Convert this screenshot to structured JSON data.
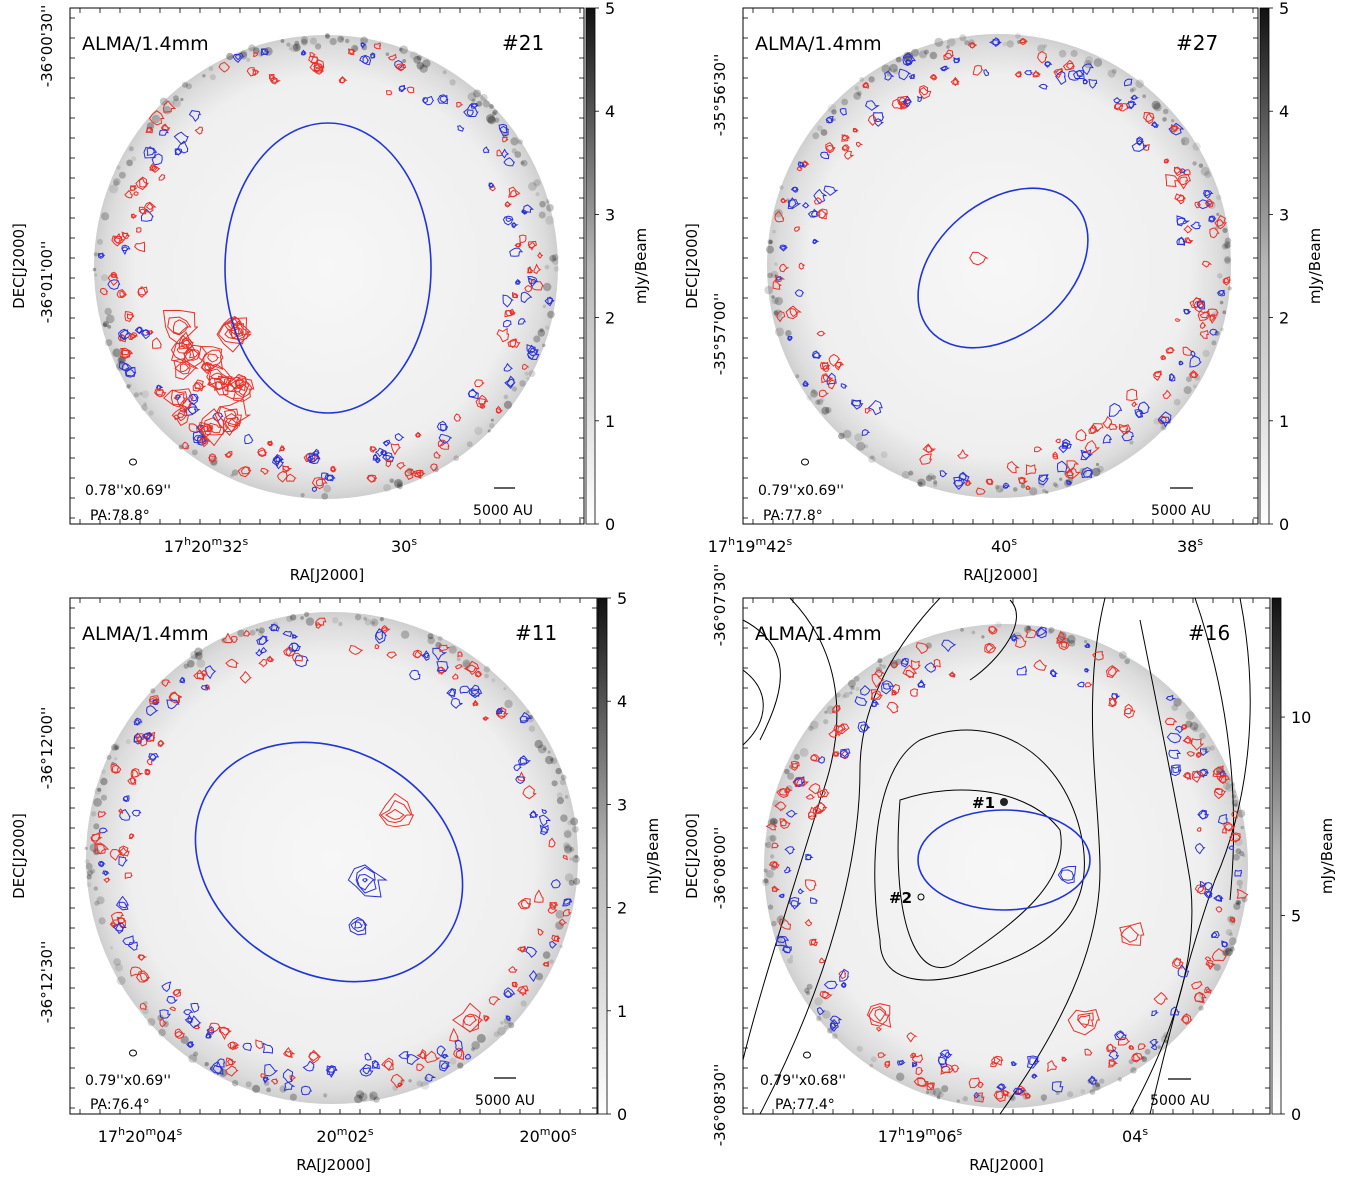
{
  "panels": [
    {
      "instrument": "ALMA/1.4mm",
      "id": "#21",
      "beam_size": "0.78''x0.69''",
      "beam_pa": "PA:78.8°",
      "scale_bar": "5000 AU",
      "ra_ticks": [
        {
          "pre": "17",
          "u1": "h",
          "mid": "20",
          "u2": "m",
          "num": "32",
          "u3": "s"
        },
        {
          "pre": "",
          "u1": "",
          "mid": "",
          "u2": "",
          "num": "30",
          "u3": "s"
        }
      ],
      "dec_ticks": [
        "-36°00'30''",
        "-36°01'00''"
      ],
      "colorbar_ticks": [
        "0",
        "1",
        "2",
        "3",
        "4",
        "5"
      ],
      "xlabel": "RA[J2000]",
      "ylabel": "DEC[J2000]",
      "cbar_label": "mJy/Beam"
    },
    {
      "instrument": "ALMA/1.4mm",
      "id": "#27",
      "beam_size": "0.79''x0.69''",
      "beam_pa": "PA:77.8°",
      "scale_bar": "5000 AU",
      "ra_ticks": [
        {
          "pre": "17",
          "u1": "h",
          "mid": "19",
          "u2": "m",
          "num": "42",
          "u3": "s"
        },
        {
          "pre": "",
          "u1": "",
          "mid": "",
          "u2": "",
          "num": "40",
          "u3": "s"
        },
        {
          "pre": "",
          "u1": "",
          "mid": "",
          "u2": "",
          "num": "38",
          "u3": "s"
        }
      ],
      "dec_ticks": [
        "-35°56'30''",
        "-35°57'00''"
      ],
      "colorbar_ticks": [
        "0",
        "1",
        "2",
        "3",
        "4",
        "5"
      ],
      "xlabel": "RA[J2000]",
      "ylabel": "DEC[J2000]",
      "cbar_label": "mJy/Beam"
    },
    {
      "instrument": "ALMA/1.4mm",
      "id": "#11",
      "beam_size": "0.79''x0.69''",
      "beam_pa": "PA:76.4°",
      "scale_bar": "5000 AU",
      "ra_ticks": [
        {
          "pre": "17",
          "u1": "h",
          "mid": "20",
          "u2": "m",
          "num": "04",
          "u3": "s"
        },
        {
          "pre": "",
          "u1": "",
          "mid": "20",
          "u2": "m",
          "num": "02",
          "u3": "s"
        },
        {
          "pre": "",
          "u1": "",
          "mid": "20",
          "u2": "m",
          "num": "00",
          "u3": "s"
        }
      ],
      "dec_ticks": [
        "-36°12'00''",
        "-36°12'30''"
      ],
      "colorbar_ticks": [
        "0",
        "1",
        "2",
        "3",
        "4",
        "5"
      ],
      "xlabel": "RA[J2000]",
      "ylabel": "DEC[J2000]",
      "cbar_label": "mJy/Beam"
    },
    {
      "instrument": "ALMA/1.4mm",
      "id": "#16",
      "beam_size": "0.79''x0.68''",
      "beam_pa": "PA:77.4°",
      "scale_bar": "5000 AU",
      "source_labels": [
        "#1",
        "#2"
      ],
      "ra_ticks": [
        {
          "pre": "17",
          "u1": "h",
          "mid": "19",
          "u2": "m",
          "num": "06",
          "u3": "s"
        },
        {
          "pre": "",
          "u1": "",
          "mid": "",
          "u2": "",
          "num": "04",
          "u3": "s"
        }
      ],
      "dec_ticks": [
        "-36°07'30''",
        "-36°08'00''",
        "-36°08'30''"
      ],
      "colorbar_ticks": [
        "0",
        "5",
        "10"
      ],
      "xlabel": "RA[J2000]",
      "ylabel": "DEC[J2000]",
      "cbar_label": "mJy/Beam"
    }
  ],
  "colors": {
    "red_contour": "#e8312a",
    "blue_contour": "#2a32d6",
    "ellipse": "#1f35d8",
    "source_label": "#8b1a1a"
  }
}
